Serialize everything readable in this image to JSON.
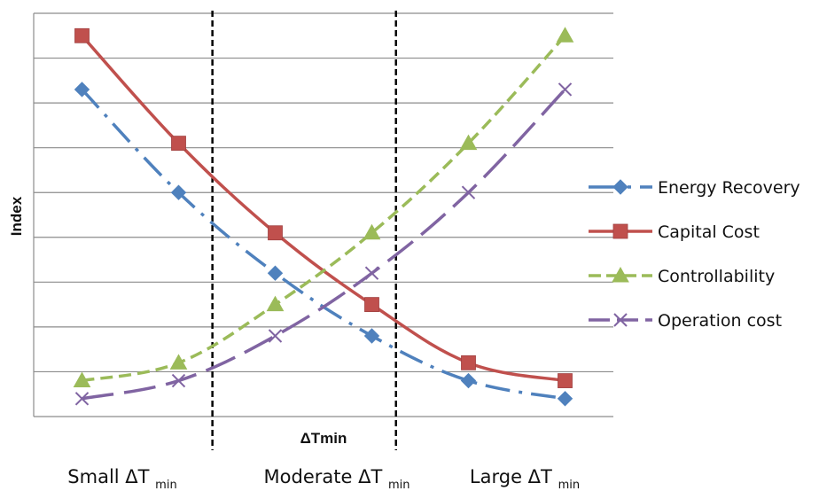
{
  "chart_data": {
    "type": "line",
    "xlabel": "ΔTmin",
    "ylabel": "Index",
    "x": [
      1,
      2,
      3,
      4,
      5,
      6
    ],
    "xlim": [
      0.5,
      6.5
    ],
    "ylim": [
      0,
      9
    ],
    "grid": true,
    "tick_labels_shown": false,
    "legend_position": "right",
    "series": [
      {
        "name": "Energy Recovery",
        "color": "#4f81bd",
        "marker": "diamond",
        "dash": "dash-dot",
        "values": [
          7.3,
          5.0,
          3.2,
          1.8,
          0.8,
          0.4
        ]
      },
      {
        "name": "Capital Cost",
        "color": "#c0504d",
        "marker": "square",
        "dash": "solid",
        "values": [
          8.5,
          6.1,
          4.1,
          2.5,
          1.2,
          0.8
        ]
      },
      {
        "name": "Controllability",
        "color": "#9bbb59",
        "marker": "triangle",
        "dash": "dash",
        "values": [
          0.8,
          1.2,
          2.5,
          4.1,
          6.1,
          8.5
        ]
      },
      {
        "name": "Operation cost",
        "color": "#8064a2",
        "marker": "x",
        "dash": "long-dash",
        "values": [
          0.4,
          0.8,
          1.8,
          3.2,
          5.0,
          7.3
        ]
      }
    ],
    "dividers_at": [
      2.35,
      4.25
    ],
    "regions": [
      {
        "label": "Small ΔT",
        "subscript": "min"
      },
      {
        "label": "Moderate ΔT",
        "subscript": "min"
      },
      {
        "label": "Large ΔT",
        "subscript": "min"
      }
    ]
  }
}
